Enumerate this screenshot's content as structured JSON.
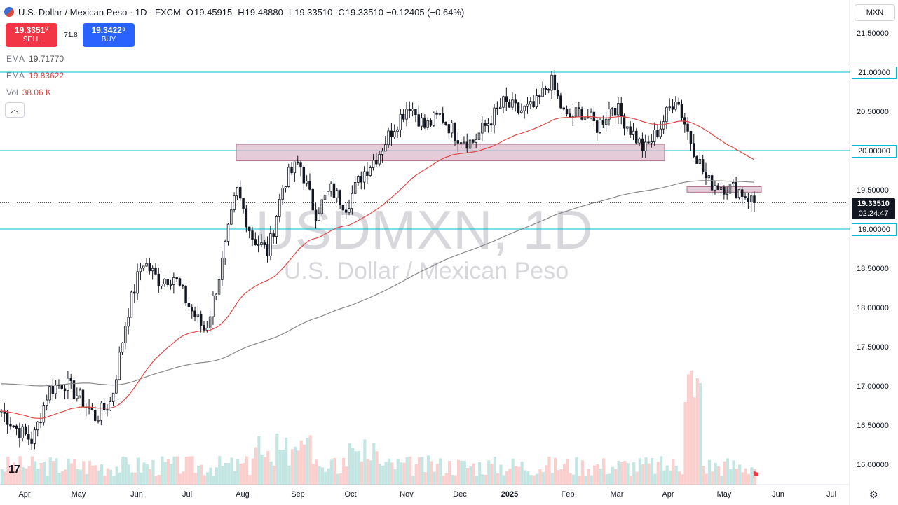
{
  "header": {
    "title": "U.S. Dollar / Mexican Peso · 1D · FXCM",
    "open_label": "O",
    "open": "19.45915",
    "high_label": "H",
    "high": "19.48880",
    "low_label": "L",
    "low": "19.33510",
    "close_label": "C",
    "close": "19.33510",
    "change": "−0.12405 (−0.64%)"
  },
  "trade": {
    "sell_price": "19.3351⁰",
    "sell_label": "SELL",
    "spread": "71.8",
    "buy_price": "19.3422⁸",
    "buy_label": "BUY"
  },
  "indicators": [
    {
      "name": "EMA",
      "value": "19.71770",
      "color": "#787b86"
    },
    {
      "name": "EMA",
      "value": "19.83622",
      "color": "#e04848"
    },
    {
      "name": "Vol",
      "value": "38.06 K",
      "color": "#e04848"
    }
  ],
  "currency_button": "MXN",
  "collapse_icon": "chevron-up-icon",
  "watermark": {
    "symbol": "USDMXN, 1D",
    "name": "U.S. Dollar / Mexican Peso"
  },
  "current_price": {
    "price": "19.33510",
    "countdown": "02:24:47"
  },
  "colors": {
    "up": "#26a69a",
    "down": "#ef5350",
    "ema_short": "#e04848",
    "ema_long": "#888888",
    "level": "#00bcd4",
    "zone_fill": "#d9b8c8"
  },
  "chart_data": {
    "type": "candlestick",
    "y_axis": {
      "range": [
        15.8,
        21.75
      ],
      "ticks": [
        "21.50000",
        "21.00000",
        "20.50000",
        "20.00000",
        "19.50000",
        "19.00000",
        "18.50000",
        "18.00000",
        "17.50000",
        "17.00000",
        "16.50000",
        "16.00000"
      ]
    },
    "x_axis": {
      "ticks": [
        "Apr",
        "May",
        "Jun",
        "Jul",
        "Aug",
        "Sep",
        "Oct",
        "Nov",
        "Dec",
        "2025",
        "Feb",
        "Mar",
        "Apr",
        "May",
        "Jun",
        "Jul"
      ]
    },
    "horizontal_levels": [
      {
        "value": 21.0,
        "label": "21.00000"
      },
      {
        "value": 20.0,
        "label": "20.00000"
      },
      {
        "value": 19.0,
        "label": "19.00000"
      }
    ],
    "zones": [
      {
        "from_month": "Aug",
        "to_month": "Apr",
        "low": 19.87,
        "high": 20.08
      },
      {
        "from_month": "Apr",
        "to_month": "May",
        "low": 19.47,
        "high": 19.54
      }
    ],
    "close_series_points": [
      [
        "Apr",
        16.68
      ],
      [
        "Apr",
        16.45
      ],
      [
        "Apr",
        16.3
      ],
      [
        "May",
        16.95
      ],
      [
        "May",
        17.05
      ],
      [
        "May",
        16.85
      ],
      [
        "May",
        16.6
      ],
      [
        "Jun",
        16.8
      ],
      [
        "Jun",
        17.9
      ],
      [
        "Jun",
        18.6
      ],
      [
        "Jun",
        18.35
      ],
      [
        "Jul",
        18.4
      ],
      [
        "Jul",
        18.0
      ],
      [
        "Jul",
        17.7
      ],
      [
        "Aug",
        18.5
      ],
      [
        "Aug",
        19.5
      ],
      [
        "Aug",
        18.9
      ],
      [
        "Aug",
        18.7
      ],
      [
        "Sep",
        19.6
      ],
      [
        "Sep",
        19.85
      ],
      [
        "Sep",
        19.2
      ],
      [
        "Oct",
        19.5
      ],
      [
        "Oct",
        19.3
      ],
      [
        "Oct",
        19.7
      ],
      [
        "Oct",
        19.95
      ],
      [
        "Nov",
        20.3
      ],
      [
        "Nov",
        20.6
      ],
      [
        "Nov",
        20.3
      ],
      [
        "Dec",
        20.45
      ],
      [
        "Dec",
        20.2
      ],
      [
        "Dec",
        20.1
      ],
      [
        "Dec",
        20.35
      ],
      [
        "2025",
        20.6
      ],
      [
        "2025",
        20.5
      ],
      [
        "2025",
        20.55
      ],
      [
        "Feb",
        20.9
      ],
      [
        "Feb",
        20.4
      ],
      [
        "Feb",
        20.5
      ],
      [
        "Mar",
        20.3
      ],
      [
        "Mar",
        20.6
      ],
      [
        "Mar",
        20.3
      ],
      [
        "Mar",
        20.0
      ],
      [
        "Apr",
        20.3
      ],
      [
        "Apr",
        20.7
      ],
      [
        "Apr",
        20.1
      ],
      [
        "Apr",
        19.6
      ],
      [
        "May",
        19.55
      ],
      [
        "May",
        19.5
      ],
      [
        "May",
        19.34
      ]
    ],
    "ema_short_last": 19.83622,
    "ema_long_last": 19.7177,
    "volume_last": "38.06 K"
  }
}
